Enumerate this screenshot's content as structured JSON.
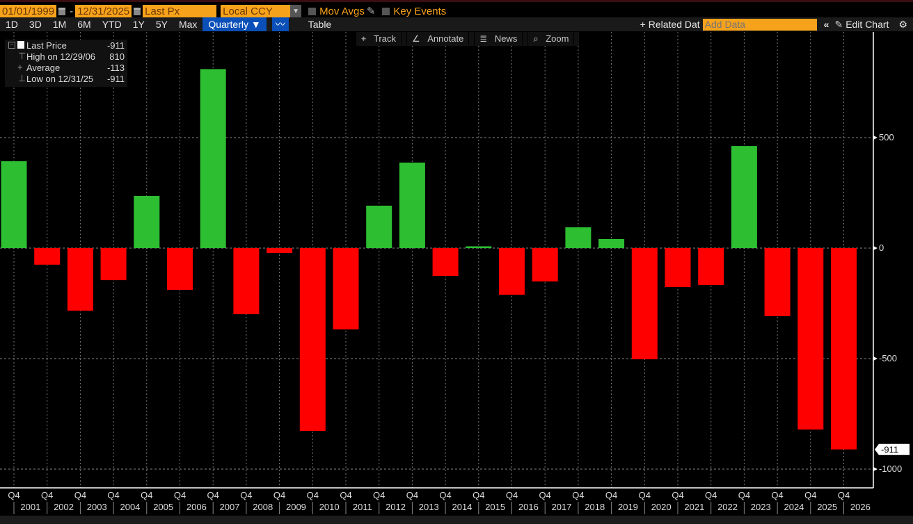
{
  "toolbar": {
    "start_date": "01/01/1999",
    "end_date": "12/31/2025",
    "field": "Last Px",
    "currency": "Local CCY",
    "mov_avgs": "Mov Avgs",
    "key_events": "Key Events",
    "ranges": [
      "1D",
      "3D",
      "1M",
      "6M",
      "YTD",
      "1Y",
      "5Y",
      "Max"
    ],
    "period": "Quarterly ▼",
    "table": "Table",
    "related_data": "+ Related Dat",
    "add_data_placeholder": "Add Data",
    "collapse": "«",
    "edit_chart": "Edit Chart",
    "tools": [
      "Track",
      "Annotate",
      "News",
      "Zoom"
    ]
  },
  "legend": {
    "items": [
      {
        "label": "Last Price",
        "value": "-911"
      },
      {
        "label": "High on 12/29/06",
        "value": "810"
      },
      {
        "label": "Average",
        "value": "-113"
      },
      {
        "label": "Low on 12/31/25",
        "value": "-911"
      }
    ]
  },
  "colors": {
    "positive": "#2dbe32",
    "negative": "#ff0000",
    "accent": "#f7a21b",
    "selected": "#0b4fb8"
  },
  "chart_data": {
    "type": "bar",
    "categories": [
      "Q4 2000",
      "Q4 2001",
      "Q4 2002",
      "Q4 2003",
      "Q4 2004",
      "Q4 2005",
      "Q4 2006",
      "Q4 2007",
      "Q4 2008",
      "Q4 2009",
      "Q4 2010",
      "Q4 2011",
      "Q4 2012",
      "Q4 2013",
      "Q4 2014",
      "Q4 2015",
      "Q4 2016",
      "Q4 2017",
      "Q4 2018",
      "Q4 2019",
      "Q4 2020",
      "Q4 2021",
      "Q4 2022",
      "Q4 2023",
      "Q4 2024",
      "Q4 2025"
    ],
    "values": [
      393,
      -75,
      -283,
      -145,
      236,
      -189,
      810,
      -299,
      -22,
      -827,
      -368,
      192,
      387,
      -126,
      8,
      -211,
      -151,
      94,
      41,
      -503,
      -176,
      -167,
      462,
      -308,
      -821,
      -911
    ],
    "x_tick_labels": [
      "Q4",
      "Q4",
      "Q4",
      "Q4",
      "Q4",
      "Q4",
      "Q4",
      "Q4",
      "Q4",
      "Q4",
      "Q4",
      "Q4",
      "Q4",
      "Q4",
      "Q4",
      "Q4",
      "Q4",
      "Q4",
      "Q4",
      "Q4",
      "Q4",
      "Q4",
      "Q4",
      "Q4",
      "Q4",
      "Q4"
    ],
    "year_labels": [
      "2001",
      "2002",
      "2003",
      "2004",
      "2005",
      "2006",
      "2007",
      "2008",
      "2009",
      "2010",
      "2011",
      "2012",
      "2013",
      "2014",
      "2015",
      "2016",
      "2017",
      "2018",
      "2019",
      "2020",
      "2021",
      "2022",
      "2023",
      "2024",
      "2025",
      "2026"
    ],
    "y_ticks": [
      500,
      0,
      -500,
      -1000
    ],
    "ylim": [
      -1100,
      960
    ],
    "last_value_label": "-911",
    "grid": true,
    "y_axis_side": "right"
  }
}
